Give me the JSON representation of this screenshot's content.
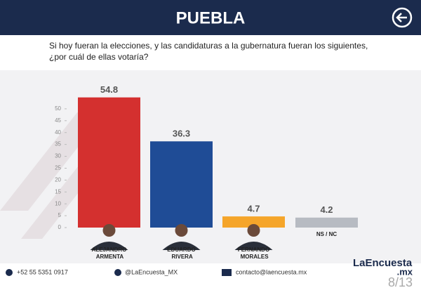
{
  "header": {
    "title": "PUEBLA"
  },
  "question": [
    "Si hoy fueran la elecciones, y las candidaturas a la gubernatura fueran los siguientes,",
    "¿por cuál de ellas votaría?"
  ],
  "chart_data": {
    "type": "bar",
    "categories": [
      "ALEJANDRO ARMENTA",
      "EDUARDO RIVERA",
      "FERNANDO MORALES",
      "NS / NC"
    ],
    "values": [
      54.8,
      36.3,
      4.7,
      4.2
    ],
    "colors": [
      "#d4302f",
      "#1f4c96",
      "#f5a52a",
      "#b7bbc2"
    ],
    "ylim": [
      0,
      55
    ],
    "yticks": [
      0,
      5,
      10,
      15,
      20,
      25,
      30,
      35,
      40,
      45,
      50
    ]
  },
  "footer": {
    "phone": "+52 55 5351 0917",
    "twitter": "@LaEncuesta_MX",
    "email": "contacto@laencuesta.mx",
    "brand": "LaEncuesta",
    "brand_suffix": ".mx",
    "page": "8/13"
  }
}
